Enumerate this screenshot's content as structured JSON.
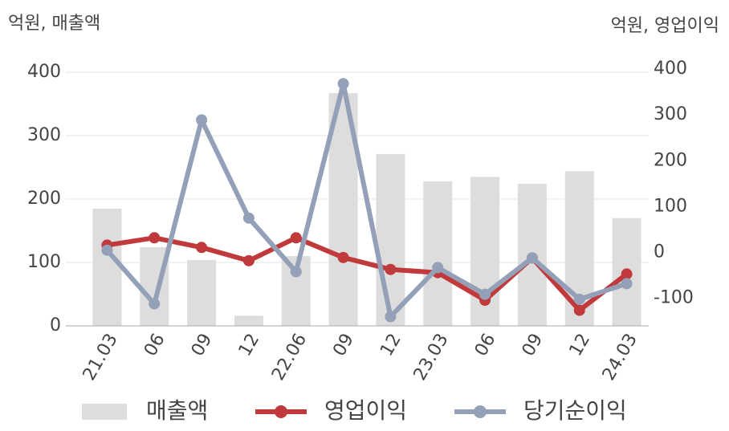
{
  "chart_data": {
    "type": "bar-line",
    "y_label": "억원, 매출액",
    "y2_label": "억원, 영업이익",
    "categories": [
      "21.03",
      "06",
      "09",
      "12",
      "22.06",
      "09",
      "12",
      "23.03",
      "06",
      "09",
      "12",
      "24.03"
    ],
    "series": [
      {
        "name": "매출액",
        "type": "bar",
        "color": "#dddddd",
        "values": [
          185,
          124,
          104,
          16,
          110,
          367,
          271,
          228,
          235,
          224,
          244,
          170
        ]
      },
      {
        "name": "영업이익",
        "type": "line",
        "axis": "y2",
        "color": "#c0393b",
        "values": [
          16,
          32,
          11,
          -18,
          32,
          -11,
          -37,
          -44,
          -104,
          -12,
          -126,
          -47
        ]
      },
      {
        "name": "당기순이익",
        "type": "line",
        "axis": "y2",
        "color": "#94a0b8",
        "values": [
          5,
          -112,
          289,
          75,
          -42,
          368,
          -140,
          -33,
          -91,
          -12,
          -102,
          -68
        ]
      }
    ],
    "ylim": [
      0,
      400
    ],
    "yticks": [
      0,
      100,
      200,
      300,
      400
    ],
    "y2lim": [
      -160,
      400
    ],
    "y2ticks": [
      -100,
      0,
      100,
      200,
      300,
      400
    ],
    "grid": true
  }
}
